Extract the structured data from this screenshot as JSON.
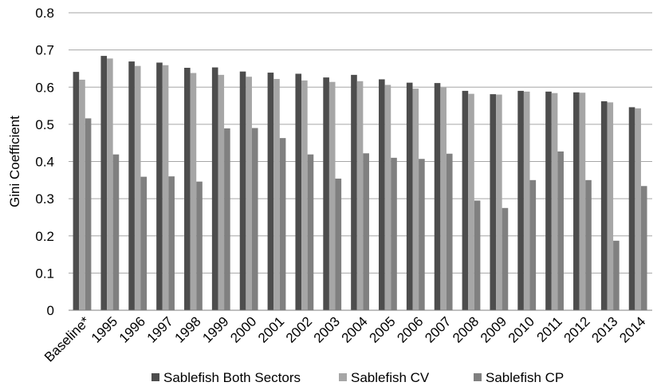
{
  "chart_data": {
    "type": "bar",
    "title": "",
    "xlabel": "",
    "ylabel": "Gini Coefficient",
    "ylim": [
      0,
      0.8
    ],
    "yticks": [
      "0",
      "0.1",
      "0.2",
      "0.3",
      "0.4",
      "0.5",
      "0.6",
      "0.7",
      "0.8"
    ],
    "grid": "horizontal",
    "legend_position": "bottom",
    "categories": [
      "Baseline*",
      "1995",
      "1996",
      "1997",
      "1998",
      "1999",
      "2000",
      "2001",
      "2002",
      "2003",
      "2004",
      "2005",
      "2006",
      "2007",
      "2008",
      "2009",
      "2010",
      "2011",
      "2012",
      "2013",
      "2014"
    ],
    "series": [
      {
        "name": "Sablefish Both Sectors",
        "color": "#4d4d4d",
        "values": [
          0.641,
          0.684,
          0.669,
          0.666,
          0.652,
          0.653,
          0.642,
          0.639,
          0.636,
          0.626,
          0.633,
          0.621,
          0.612,
          0.611,
          0.59,
          0.581,
          0.59,
          0.588,
          0.586,
          0.562,
          0.546
        ]
      },
      {
        "name": "Sablefish CV",
        "color": "#a6a6a6",
        "values": [
          0.62,
          0.677,
          0.657,
          0.659,
          0.638,
          0.633,
          0.628,
          0.622,
          0.618,
          0.614,
          0.616,
          0.606,
          0.596,
          0.599,
          0.582,
          0.58,
          0.588,
          0.584,
          0.585,
          0.559,
          0.543
        ]
      },
      {
        "name": "Sablefish CP",
        "color": "#808080",
        "values": [
          0.516,
          0.419,
          0.359,
          0.36,
          0.346,
          0.489,
          0.49,
          0.463,
          0.419,
          0.354,
          0.422,
          0.41,
          0.407,
          0.421,
          0.295,
          0.275,
          0.35,
          0.427,
          0.35,
          0.187,
          0.334
        ]
      }
    ]
  }
}
